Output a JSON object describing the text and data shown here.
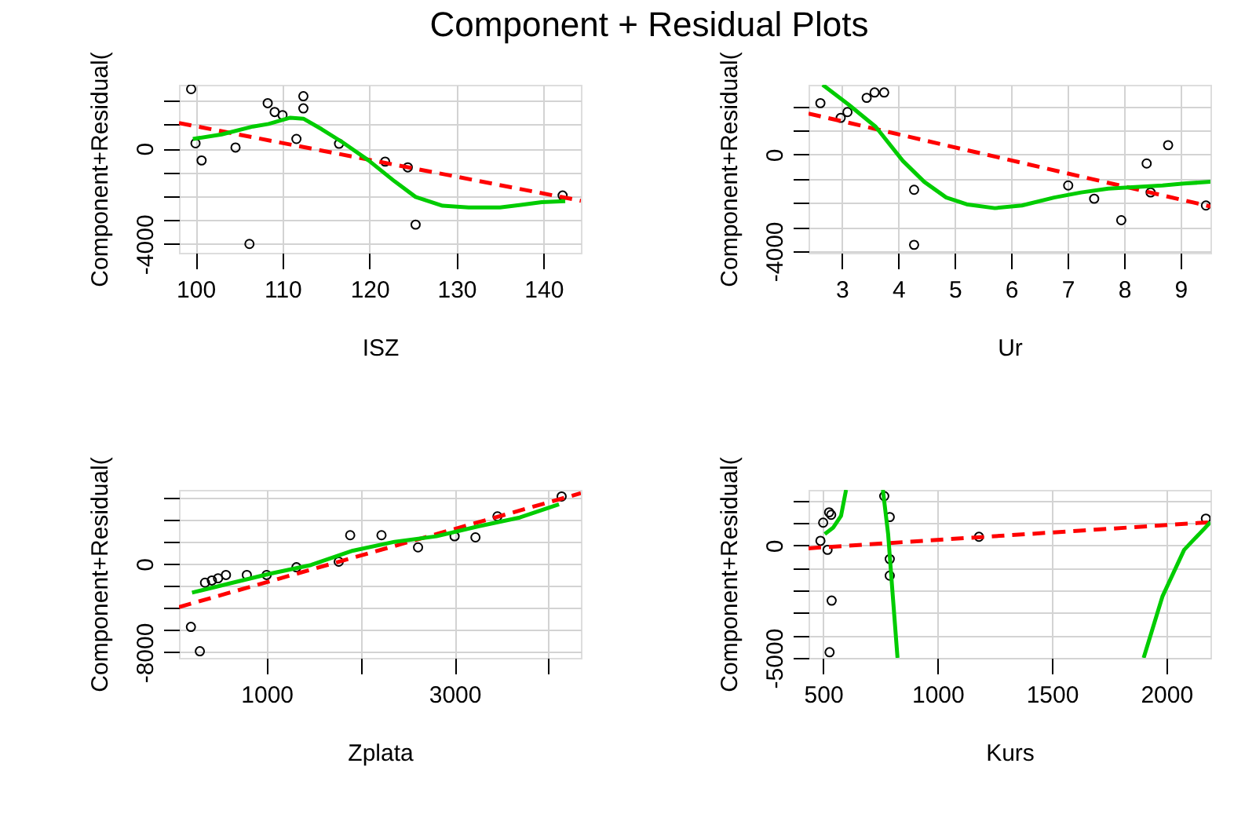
{
  "chart_data": [
    {
      "type": "scatter",
      "title": "Component + Residual Plots",
      "xlabel": "ISZ",
      "ylabel": "Component+Residual(",
      "xlim": [
        98.1,
        144.3
      ],
      "xticks": [
        100,
        110,
        120,
        130,
        140
      ],
      "ylim": [
        -4370,
        2670
      ],
      "yticks": [
        {
          "value": -4000,
          "label": "-4000"
        },
        {
          "value": -3000,
          "label": null
        },
        {
          "value": -2000,
          "label": null
        },
        {
          "value": -1000,
          "label": null
        },
        {
          "value": 0,
          "label": "0"
        },
        {
          "value": 1000,
          "label": null
        },
        {
          "value": 2000,
          "label": null
        }
      ],
      "grid": true,
      "series": [
        {
          "marker": "circle",
          "color": "#000000",
          "x": [
            99.5,
            100,
            100.7,
            104.6,
            106.2,
            108.3,
            109.1,
            110,
            111.6,
            112.4,
            112.4,
            116.5,
            121.8,
            124.4,
            125.3,
            142.2
          ],
          "values": [
            2490,
            220,
            -500,
            40,
            -4000,
            1900,
            1530,
            1400,
            400,
            2190,
            1680,
            200,
            -550,
            -790,
            -3190,
            -1970
          ]
        },
        {
          "type": "line",
          "marker": "none",
          "line_style": "dashed",
          "color": "#ff0000",
          "x": [
            98.1,
            144.3
          ],
          "values": [
            1070,
            -2190
          ]
        },
        {
          "type": "line",
          "marker": "none",
          "line_style": "solid",
          "color": "#00cc00",
          "x": [
            99.7,
            103,
            106.6,
            108.4,
            110.9,
            112.4,
            114.5,
            116.9,
            119.9,
            122.9,
            125.3,
            128.4,
            131.4,
            135,
            137.4,
            139.8,
            142.5
          ],
          "values": [
            400,
            590,
            920,
            1030,
            1290,
            1250,
            810,
            260,
            -500,
            -1380,
            -2030,
            -2400,
            -2470,
            -2470,
            -2360,
            -2250,
            -2210
          ]
        }
      ]
    },
    {
      "type": "scatter",
      "xlabel": "Ur",
      "ylabel": "Component+Residual(",
      "xlim": [
        2.41,
        9.53
      ],
      "xticks": [
        3,
        4,
        5,
        6,
        7,
        8,
        9
      ],
      "ylim": [
        -4070,
        2890
      ],
      "yticks": [
        {
          "value": -4000,
          "label": "-4000"
        },
        {
          "value": -3000,
          "label": null
        },
        {
          "value": -2000,
          "label": null
        },
        {
          "value": -1000,
          "label": null
        },
        {
          "value": 0,
          "label": "0"
        },
        {
          "value": 1000,
          "label": null
        },
        {
          "value": 2000,
          "label": null
        }
      ],
      "grid": true,
      "series": [
        {
          "marker": "circle",
          "color": "#000000",
          "x": [
            2.62,
            2.98,
            3.1,
            3.44,
            3.58,
            3.75,
            4.28,
            4.28,
            7.01,
            7.47,
            7.95,
            8.4,
            8.47,
            8.78,
            9.45
          ],
          "values": [
            2130,
            1520,
            1760,
            2350,
            2570,
            2570,
            -1460,
            -3740,
            -1280,
            -1830,
            -2720,
            -370,
            -1570,
            390,
            -2110
          ]
        },
        {
          "type": "line",
          "marker": "none",
          "line_style": "dashed",
          "color": "#ff0000",
          "x": [
            2.41,
            9.53
          ],
          "values": [
            1700,
            -2150
          ]
        },
        {
          "type": "line",
          "marker": "none",
          "line_style": "solid",
          "color": "#00cc00",
          "x": [
            2.66,
            3.12,
            3.6,
            4.08,
            4.46,
            4.85,
            5.23,
            5.71,
            6.19,
            6.76,
            7.24,
            7.72,
            8.2,
            8.68,
            9.06,
            9.53
          ],
          "values": [
            2890,
            2070,
            1150,
            -260,
            -1130,
            -1780,
            -2070,
            -2220,
            -2110,
            -1780,
            -1570,
            -1410,
            -1350,
            -1280,
            -1200,
            -1130
          ]
        }
      ]
    },
    {
      "type": "scatter",
      "xlabel": "Zplata",
      "ylabel": "Component+Residual(",
      "xlim": [
        67,
        4344
      ],
      "xticks": [
        {
          "value": 1000,
          "label": "1000"
        },
        {
          "value": 2000,
          "label": null
        },
        {
          "value": 3000,
          "label": "3000"
        },
        {
          "value": 4000,
          "label": null
        }
      ],
      "ylim": [
        -8500,
        6700
      ],
      "yticks": [
        {
          "value": -8000,
          "label": "-8000"
        },
        {
          "value": -6000,
          "label": null
        },
        {
          "value": -4000,
          "label": null
        },
        {
          "value": -2000,
          "label": null
        },
        {
          "value": 0,
          "label": "0"
        },
        {
          "value": 2000,
          "label": null
        },
        {
          "value": 4000,
          "label": null
        },
        {
          "value": 6000,
          "label": null
        }
      ],
      "grid": true,
      "series": [
        {
          "marker": "circle",
          "color": "#000000",
          "x": [
            194,
            289,
            344,
            417,
            483,
            567,
            789,
            1000,
            1317,
            1767,
            1889,
            2222,
            2611,
            3000,
            3222,
            3456,
            4139
          ],
          "values": [
            -5700,
            -7900,
            -1700,
            -1500,
            -1300,
            -1000,
            -1000,
            -1000,
            -300,
            200,
            2600,
            2600,
            1500,
            2500,
            2400,
            4300,
            6100
          ]
        },
        {
          "type": "line",
          "marker": "none",
          "line_style": "dashed",
          "color": "#ff0000",
          "x": [
            67,
            4344
          ],
          "values": [
            -3900,
            6400
          ]
        },
        {
          "type": "line",
          "marker": "none",
          "line_style": "solid",
          "color": "#00cc00",
          "x": [
            206,
            639,
            1028,
            1472,
            1917,
            2361,
            2806,
            3250,
            3694,
            4111
          ],
          "values": [
            -2600,
            -1700,
            -900,
            -100,
            1200,
            2000,
            2500,
            3400,
            4200,
            5400
          ]
        }
      ]
    },
    {
      "type": "scatter",
      "xlabel": "Kurs",
      "ylabel": "Component+Residual(",
      "xlim": [
        436,
        2193
      ],
      "xticks": [
        500,
        1000,
        1500,
        2000
      ],
      "ylim": [
        -5000,
        2480
      ],
      "yticks": [
        {
          "value": -5000,
          "label": "-5000"
        },
        {
          "value": -4000,
          "label": null
        },
        {
          "value": -3000,
          "label": null
        },
        {
          "value": -2000,
          "label": null
        },
        {
          "value": -1000,
          "label": null
        },
        {
          "value": 0,
          "label": "0"
        },
        {
          "value": 1000,
          "label": null
        },
        {
          "value": 2000,
          "label": null
        }
      ],
      "grid": true,
      "series": [
        {
          "marker": "circle",
          "color": "#000000",
          "x": [
            488,
            500,
            526,
            535,
            519,
            537,
            528,
            767,
            791,
            791,
            791,
            1181,
            2173
          ],
          "values": [
            210,
            1020,
            1480,
            1370,
            -190,
            -2450,
            -4750,
            2200,
            1270,
            -600,
            -1340,
            390,
            1200
          ]
        },
        {
          "type": "line",
          "marker": "none",
          "line_style": "dashed",
          "color": "#ff0000",
          "x": [
            436,
            2193
          ],
          "values": [
            -120,
            1040
          ]
        },
        {
          "type": "line",
          "marker": "none",
          "line_style": "solid",
          "color": "#00cc00",
          "x": [
            507,
            543,
            578,
            600
          ],
          "values": [
            510,
            790,
            1320,
            2480
          ]
        },
        {
          "type": "line",
          "marker": "none",
          "line_style": "solid",
          "color": "#00cc00",
          "x": [
            761,
            784,
            801,
            825
          ],
          "values": [
            2480,
            510,
            -1800,
            -5000
          ]
        },
        {
          "type": "line",
          "marker": "none",
          "line_style": "solid",
          "color": "#00cc00",
          "x": [
            1901,
            1983,
            2078,
            2193
          ],
          "values": [
            -5000,
            -2270,
            -190,
            1040
          ]
        }
      ]
    }
  ]
}
